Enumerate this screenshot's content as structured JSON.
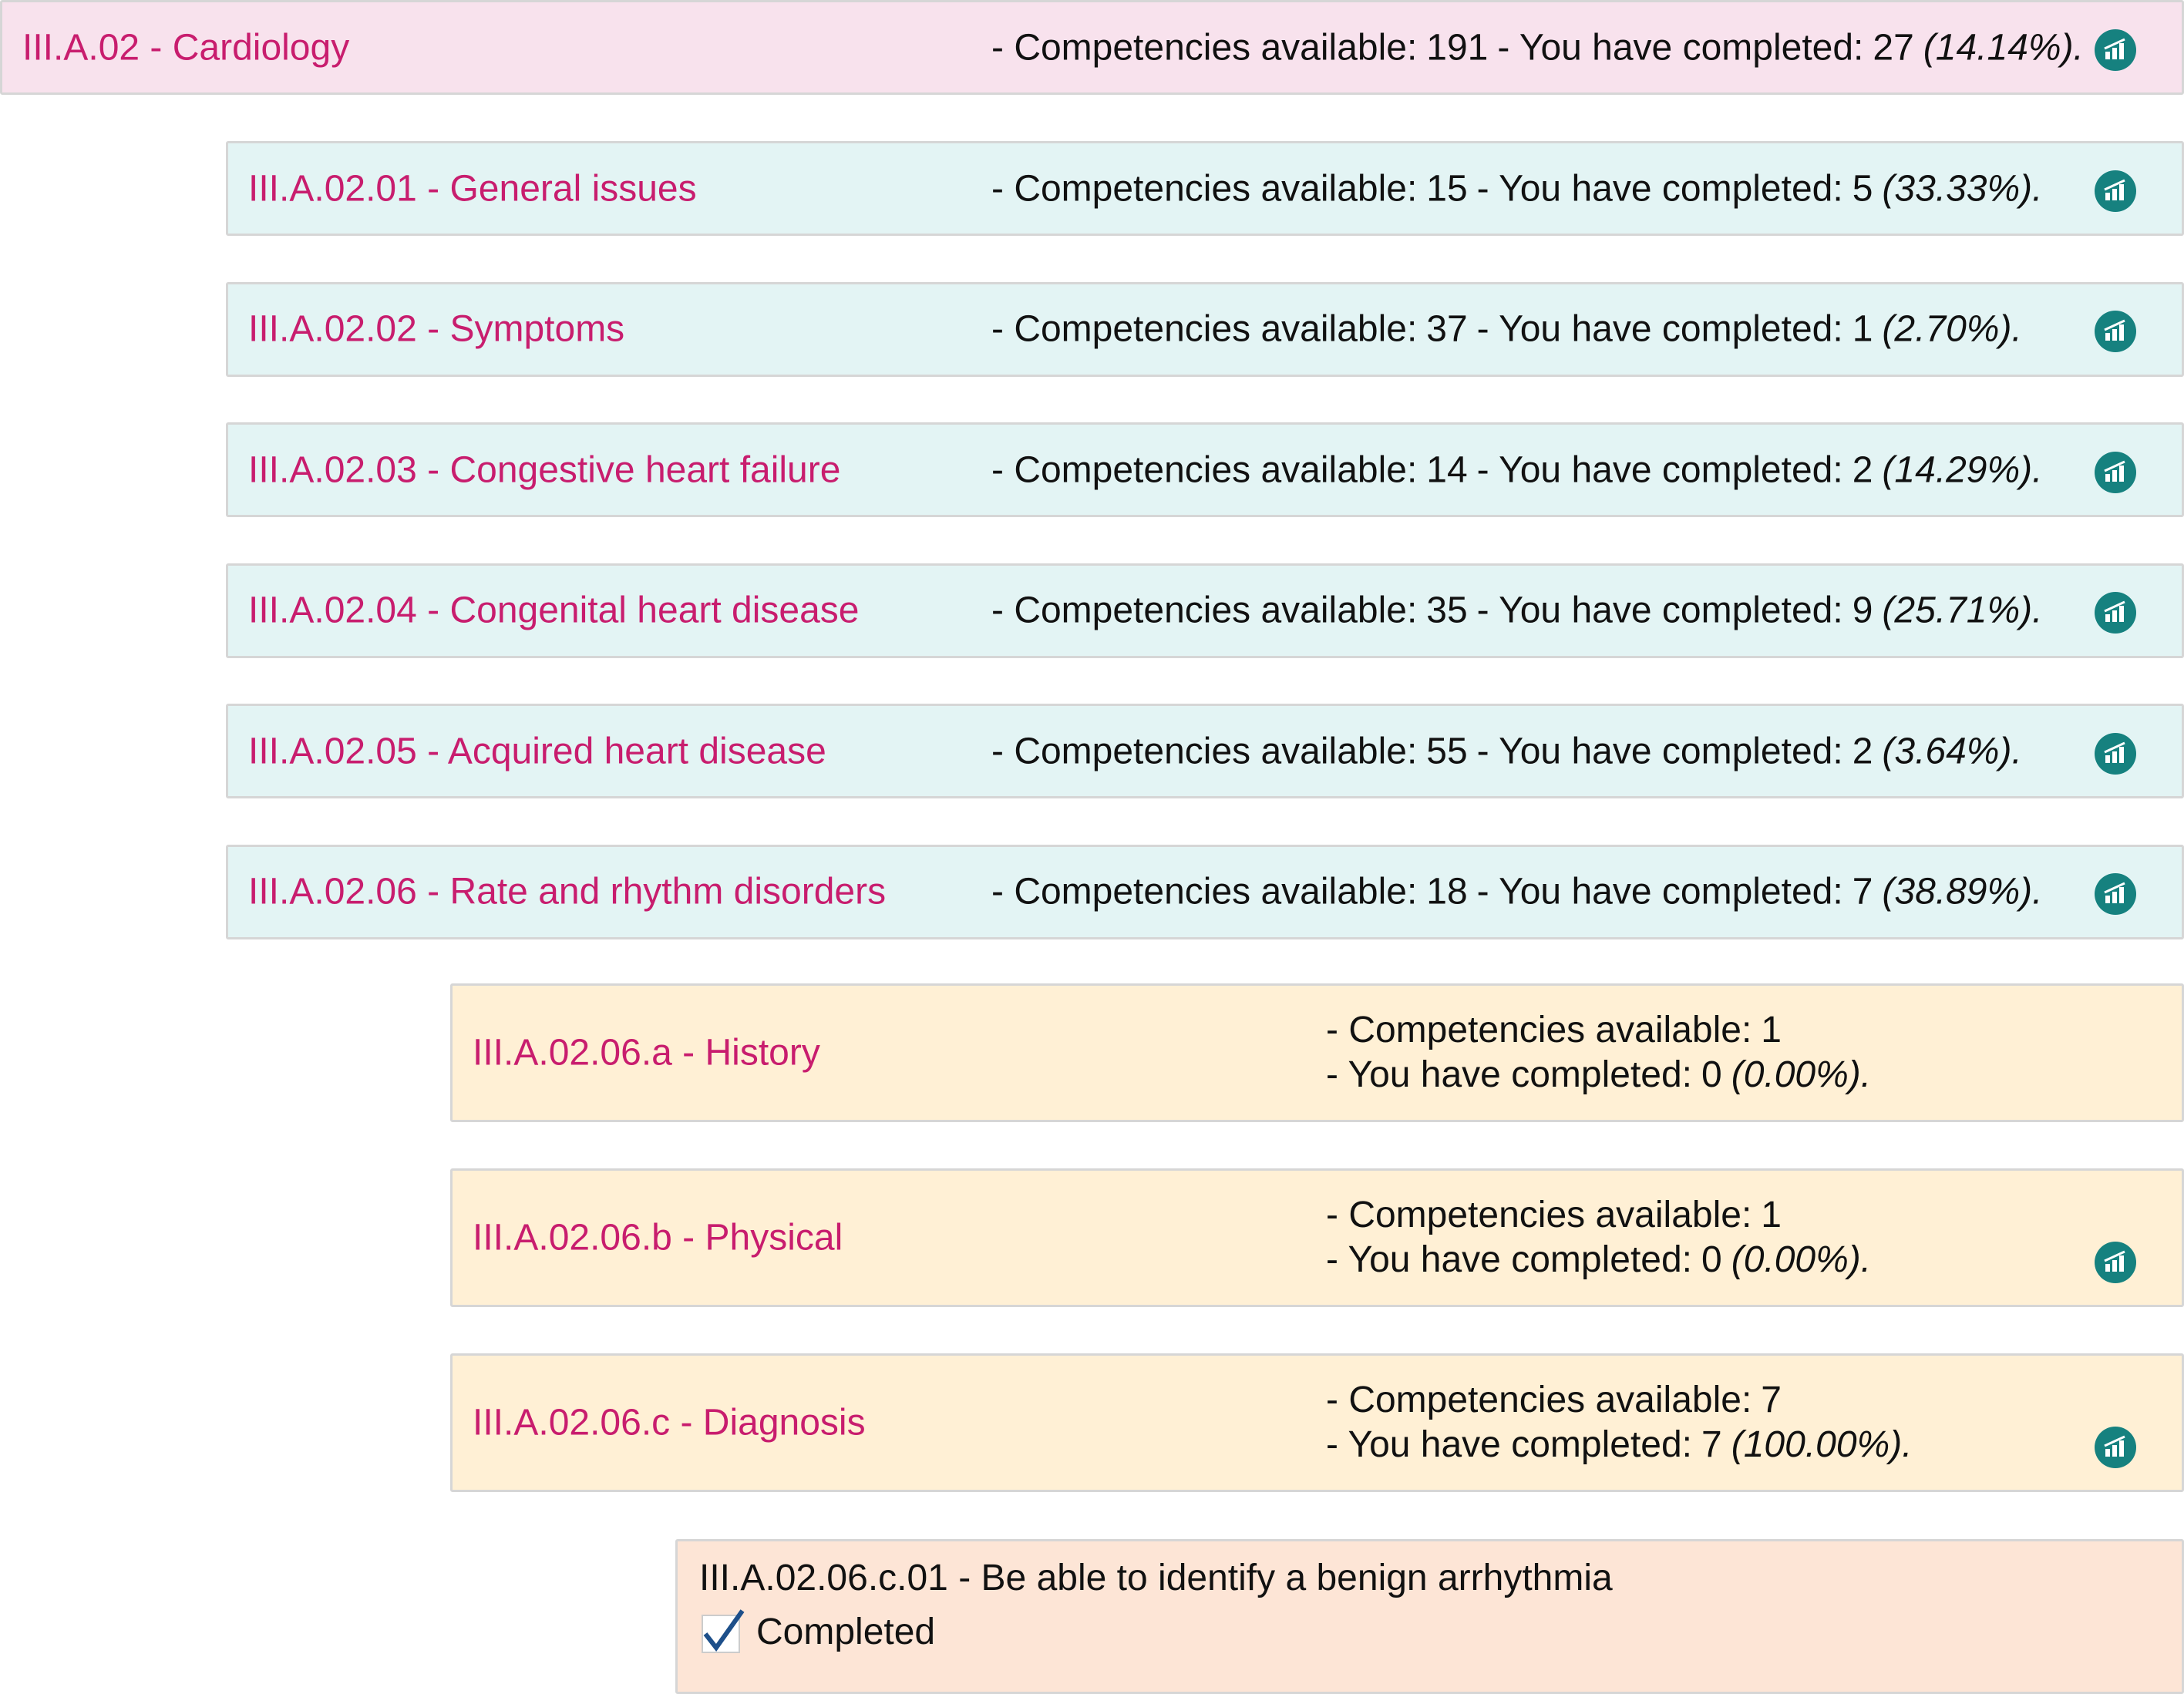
{
  "labels": {
    "available": "- Competencies available:",
    "completed": "- You have completed:"
  },
  "topic": {
    "title": "III.A.02 - Cardiology",
    "available": 191,
    "completed": 27,
    "percent": "(14.14%).",
    "icon": true
  },
  "subtopics": [
    {
      "title": "III.A.02.01 - General issues",
      "available": 15,
      "completed": 5,
      "percent": "(33.33%).",
      "icon": true
    },
    {
      "title": "III.A.02.02 - Symptoms",
      "available": 37,
      "completed": 1,
      "percent": "(2.70%).",
      "icon": true
    },
    {
      "title": "III.A.02.03 - Congestive heart failure",
      "available": 14,
      "completed": 2,
      "percent": "(14.29%).",
      "icon": true
    },
    {
      "title": "III.A.02.04 - Congenital heart disease",
      "available": 35,
      "completed": 9,
      "percent": "(25.71%).",
      "icon": true
    },
    {
      "title": "III.A.02.05 - Acquired heart disease",
      "available": 55,
      "completed": 2,
      "percent": "(3.64%).",
      "icon": true
    },
    {
      "title": "III.A.02.06 - Rate and rhythm disorders",
      "available": 18,
      "completed": 7,
      "percent": "(38.89%).",
      "icon": true
    }
  ],
  "subsubtopics": [
    {
      "title": "III.A.02.06.a - History",
      "available": 1,
      "completed": 0,
      "percent": "(0.00%).",
      "icon": false
    },
    {
      "title": "III.A.02.06.b - Physical",
      "available": 1,
      "completed": 0,
      "percent": "(0.00%).",
      "icon": true
    },
    {
      "title": "III.A.02.06.c - Diagnosis",
      "available": 7,
      "completed": 7,
      "percent": "(100.00%).",
      "icon": true
    }
  ],
  "competency": {
    "title": "III.A.02.06.c.01 - Be able to identify a benign arrhythmia",
    "status": "Completed"
  }
}
